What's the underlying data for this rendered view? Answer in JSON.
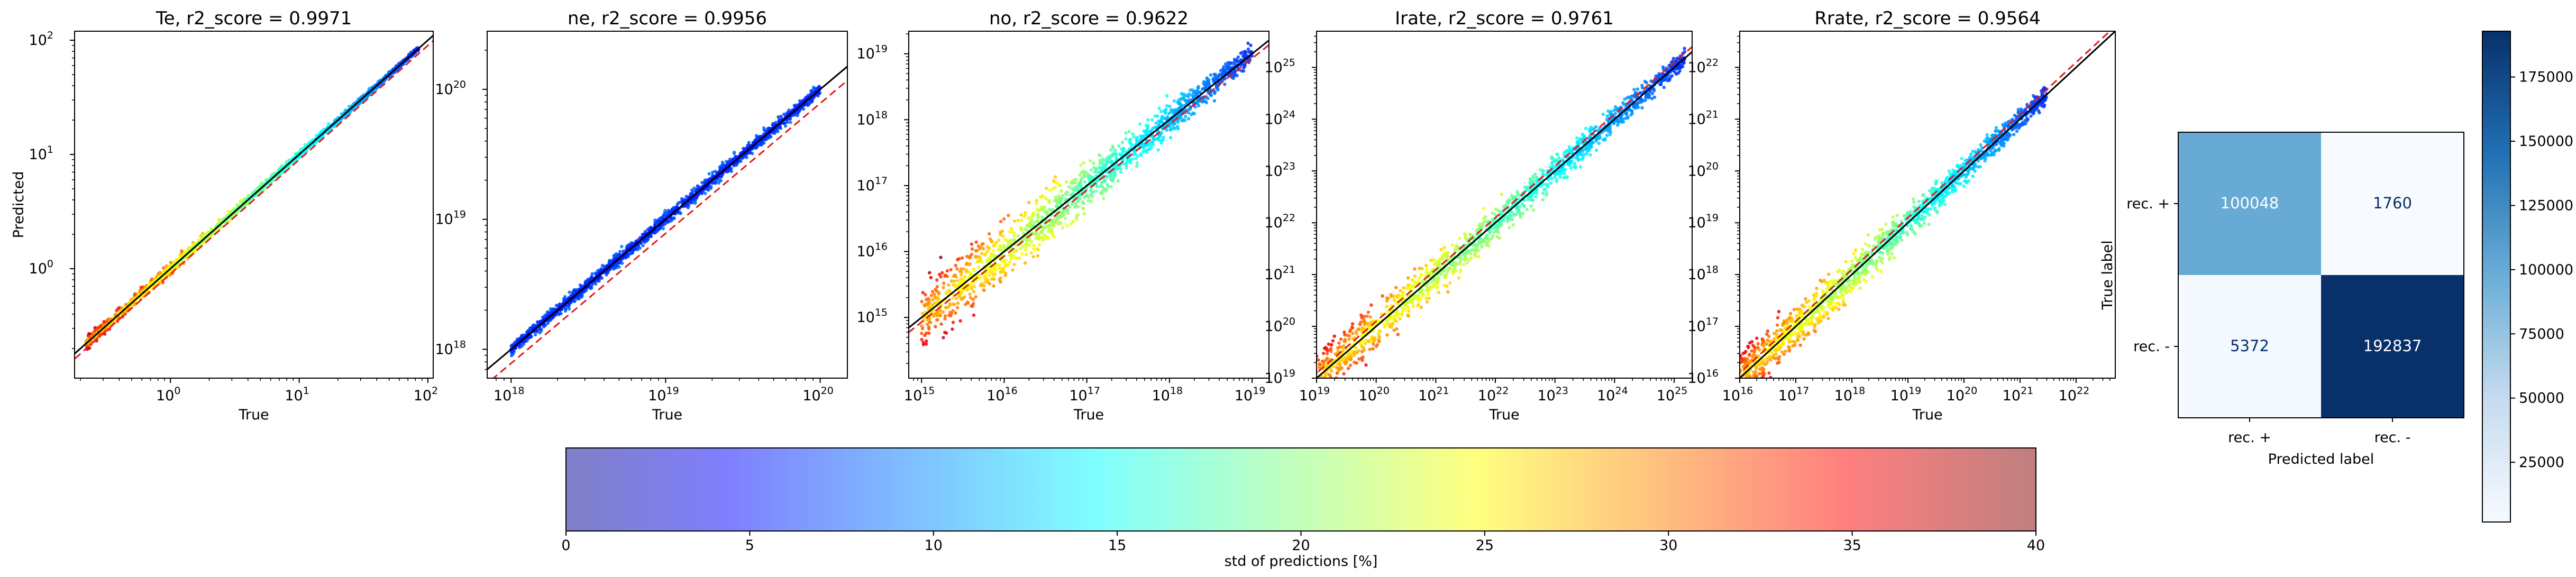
{
  "chart_data": [
    {
      "type": "scatter",
      "title": "Te, r2_score = 0.9971",
      "xlabel": "True",
      "ylabel": "Predicted",
      "scale": "log",
      "xlim": [
        0.18,
        110
      ],
      "ylim": [
        0.11,
        120
      ],
      "xticks": [
        {
          "value": 1,
          "exp": "0"
        },
        {
          "value": 10,
          "exp": "1"
        },
        {
          "value": 100,
          "exp": "2"
        }
      ],
      "yticks": [
        {
          "value": 1,
          "exp": "0"
        },
        {
          "value": 10,
          "exp": "1"
        },
        {
          "value": 100,
          "exp": "2"
        }
      ],
      "data_range": [
        0.22,
        85
      ],
      "spread": 0.035,
      "bias_line": 0.9,
      "hi_std_end": "low"
    },
    {
      "type": "scatter",
      "title": "ne, r2_score = 0.9956",
      "xlabel": "True",
      "ylabel": "",
      "scale": "log",
      "xlim": [
        7e+17,
        1.5e+20
      ],
      "ylim": [
        6e+17,
        2.8e+20
      ],
      "xticks": [
        {
          "value": 1e+18,
          "exp": "18"
        },
        {
          "value": 1e+19,
          "exp": "19"
        },
        {
          "value": 1e+20,
          "exp": "20"
        }
      ],
      "yticks": [
        {
          "value": 1e+18,
          "exp": "18"
        },
        {
          "value": 1e+19,
          "exp": "19"
        },
        {
          "value": 1e+20,
          "exp": "20"
        }
      ],
      "data_range": [
        1e+18,
        1e+20
      ],
      "spread": 0.05,
      "bias_line": 0.78,
      "hi_std_end": "none"
    },
    {
      "type": "scatter",
      "title": "no, r2_score = 0.9622",
      "xlabel": "True",
      "ylabel": "",
      "scale": "log",
      "xlim": [
        700000000000000.0,
        1.6e+19
      ],
      "ylim": [
        120000000000000.0,
        2.2e+19
      ],
      "xticks": [
        {
          "value": 1000000000000000.0,
          "exp": "15"
        },
        {
          "value": 1e+16,
          "exp": "16"
        },
        {
          "value": 1e+17,
          "exp": "17"
        },
        {
          "value": 1e+18,
          "exp": "18"
        },
        {
          "value": 1e+19,
          "exp": "19"
        }
      ],
      "yticks": [
        {
          "value": 1000000000000000.0,
          "exp": "15"
        },
        {
          "value": 1e+16,
          "exp": "16"
        },
        {
          "value": 1e+17,
          "exp": "17"
        },
        {
          "value": 1e+18,
          "exp": "18"
        },
        {
          "value": 1e+19,
          "exp": "19"
        }
      ],
      "data_range": [
        1000000000000000.0,
        1e+19
      ],
      "spread": 0.3,
      "bias_line": 0.85,
      "hi_std_end": "low"
    },
    {
      "type": "scatter",
      "title": "Irate, r2_score = 0.9761",
      "xlabel": "True",
      "ylabel": "",
      "scale": "log",
      "xlim": [
        1e+19,
        2e+25
      ],
      "ylim": [
        1e+19,
        5e+25
      ],
      "xticks": [
        {
          "value": 1e+19,
          "exp": "19"
        },
        {
          "value": 1e+20,
          "exp": "20"
        },
        {
          "value": 1e+21,
          "exp": "21"
        },
        {
          "value": 1e+22,
          "exp": "22"
        },
        {
          "value": 1e+23,
          "exp": "23"
        },
        {
          "value": 1e+24,
          "exp": "24"
        },
        {
          "value": 1e+25,
          "exp": "25"
        }
      ],
      "yticks": [
        {
          "value": 1e+19,
          "exp": "19"
        },
        {
          "value": 1e+20,
          "exp": "20"
        },
        {
          "value": 1e+21,
          "exp": "21"
        },
        {
          "value": 1e+22,
          "exp": "22"
        },
        {
          "value": 1e+23,
          "exp": "23"
        },
        {
          "value": 1e+24,
          "exp": "24"
        },
        {
          "value": 1e+25,
          "exp": "25"
        }
      ],
      "data_range": [
        1e+19,
        1.5e+25
      ],
      "spread": 0.3,
      "bias_line": 1.25,
      "hi_std_end": "low"
    },
    {
      "type": "scatter",
      "title": "Rrate, r2_score = 0.9564",
      "xlabel": "True",
      "ylabel": "",
      "scale": "log",
      "xlim": [
        1e+16,
        5e+22
      ],
      "ylim": [
        1e+16,
        5e+22
      ],
      "xticks": [
        {
          "value": 1e+16,
          "exp": "16"
        },
        {
          "value": 1e+17,
          "exp": "17"
        },
        {
          "value": 1e+18,
          "exp": "18"
        },
        {
          "value": 1e+19,
          "exp": "19"
        },
        {
          "value": 1e+20,
          "exp": "20"
        },
        {
          "value": 1e+21,
          "exp": "21"
        },
        {
          "value": 1e+22,
          "exp": "22"
        }
      ],
      "yticks": [
        {
          "value": 1e+16,
          "exp": "16"
        },
        {
          "value": 1e+17,
          "exp": "17"
        },
        {
          "value": 1e+18,
          "exp": "18"
        },
        {
          "value": 1e+19,
          "exp": "19"
        },
        {
          "value": 1e+20,
          "exp": "20"
        },
        {
          "value": 1e+21,
          "exp": "21"
        },
        {
          "value": 1e+22,
          "exp": "22"
        }
      ],
      "data_range": [
        1e+16,
        3e+21
      ],
      "spread": 0.3,
      "bias_line": 1.25,
      "hi_std_end": "low"
    },
    {
      "type": "heatmap",
      "title": "",
      "xlabel": "Predicted label",
      "ylabel": "True label",
      "x_categories": [
        "rec. +",
        "rec. -"
      ],
      "y_categories": [
        "rec. +",
        "rec. -"
      ],
      "values": [
        [
          100048,
          1760
        ],
        [
          5372,
          192837
        ]
      ],
      "color_scale": "Blues",
      "colorbar_range": [
        1760,
        192837
      ],
      "colorbar_ticks": [
        "25000",
        "50000",
        "75000",
        "100000",
        "125000",
        "150000",
        "175000"
      ]
    }
  ],
  "colorbar": {
    "label": "std of predictions [%]",
    "range": [
      0,
      40
    ],
    "ticks": [
      "0",
      "5",
      "10",
      "15",
      "20",
      "25",
      "30",
      "35",
      "40"
    ],
    "colormap": "jet"
  },
  "colors": {
    "ideal_line": "#000000",
    "bias_line": "#e41a1c",
    "low_std": "#0000ff",
    "high_std": "#8b0000"
  }
}
